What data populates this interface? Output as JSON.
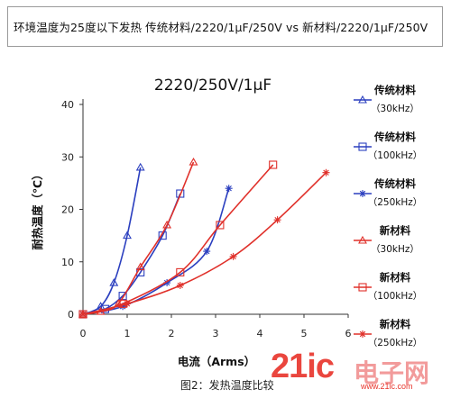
{
  "header": {
    "text": "环境温度为25度以下发热 传统材料/2220/1μF/250V vs 新材料/2220/1μF/250V"
  },
  "caption": "图2：发热温度比较",
  "watermark": {
    "brand": "21ic",
    "cn": "电子网",
    "url": "www.21ic.com"
  },
  "chart_data": {
    "type": "line",
    "title": "2220/250V/1μF",
    "xlabel": "电流（Arms）",
    "ylabel": "耐热温度（℃）",
    "xlim": [
      0,
      6
    ],
    "ylim": [
      0,
      40
    ],
    "xticks": [
      "0",
      "1",
      "2",
      "3",
      "4",
      "5",
      "6"
    ],
    "yticks": [
      "0",
      "10",
      "20",
      "30",
      "40"
    ],
    "grid": false,
    "legend_position": "right",
    "series": [
      {
        "name": "传统材料",
        "freq": "（30kHz）",
        "color": "#2b3fbf",
        "marker": "triangle",
        "x": [
          0,
          0.4,
          0.7,
          1.0,
          1.3
        ],
        "y": [
          0,
          1.5,
          6,
          15,
          28
        ]
      },
      {
        "name": "传统材料",
        "freq": "（100kHz）",
        "color": "#2b3fbf",
        "marker": "square",
        "x": [
          0,
          0.5,
          0.9,
          1.3,
          1.8,
          2.2
        ],
        "y": [
          0,
          1,
          3.5,
          8,
          15,
          23
        ]
      },
      {
        "name": "传统材料",
        "freq": "（250kHz）",
        "color": "#2b3fbf",
        "marker": "star",
        "x": [
          0,
          0.9,
          1.9,
          2.8,
          3.3
        ],
        "y": [
          0,
          1.5,
          6,
          12,
          24
        ]
      },
      {
        "name": "新材料",
        "freq": "（30kHz）",
        "color": "#e0302a",
        "marker": "triangle",
        "x": [
          0,
          0.4,
          0.8,
          1.3,
          1.9,
          2.5
        ],
        "y": [
          0,
          0.5,
          2,
          9,
          17,
          29
        ]
      },
      {
        "name": "新材料",
        "freq": "（100kHz）",
        "color": "#e0302a",
        "marker": "square",
        "x": [
          0,
          0.9,
          2.2,
          3.1,
          4.3
        ],
        "y": [
          0,
          2,
          8,
          17,
          28.5
        ]
      },
      {
        "name": "新材料",
        "freq": "（250kHz）",
        "color": "#e0302a",
        "marker": "star",
        "x": [
          0,
          1.0,
          2.2,
          3.4,
          4.4,
          5.5
        ],
        "y": [
          0,
          2,
          5.5,
          11,
          18,
          27
        ]
      }
    ]
  }
}
